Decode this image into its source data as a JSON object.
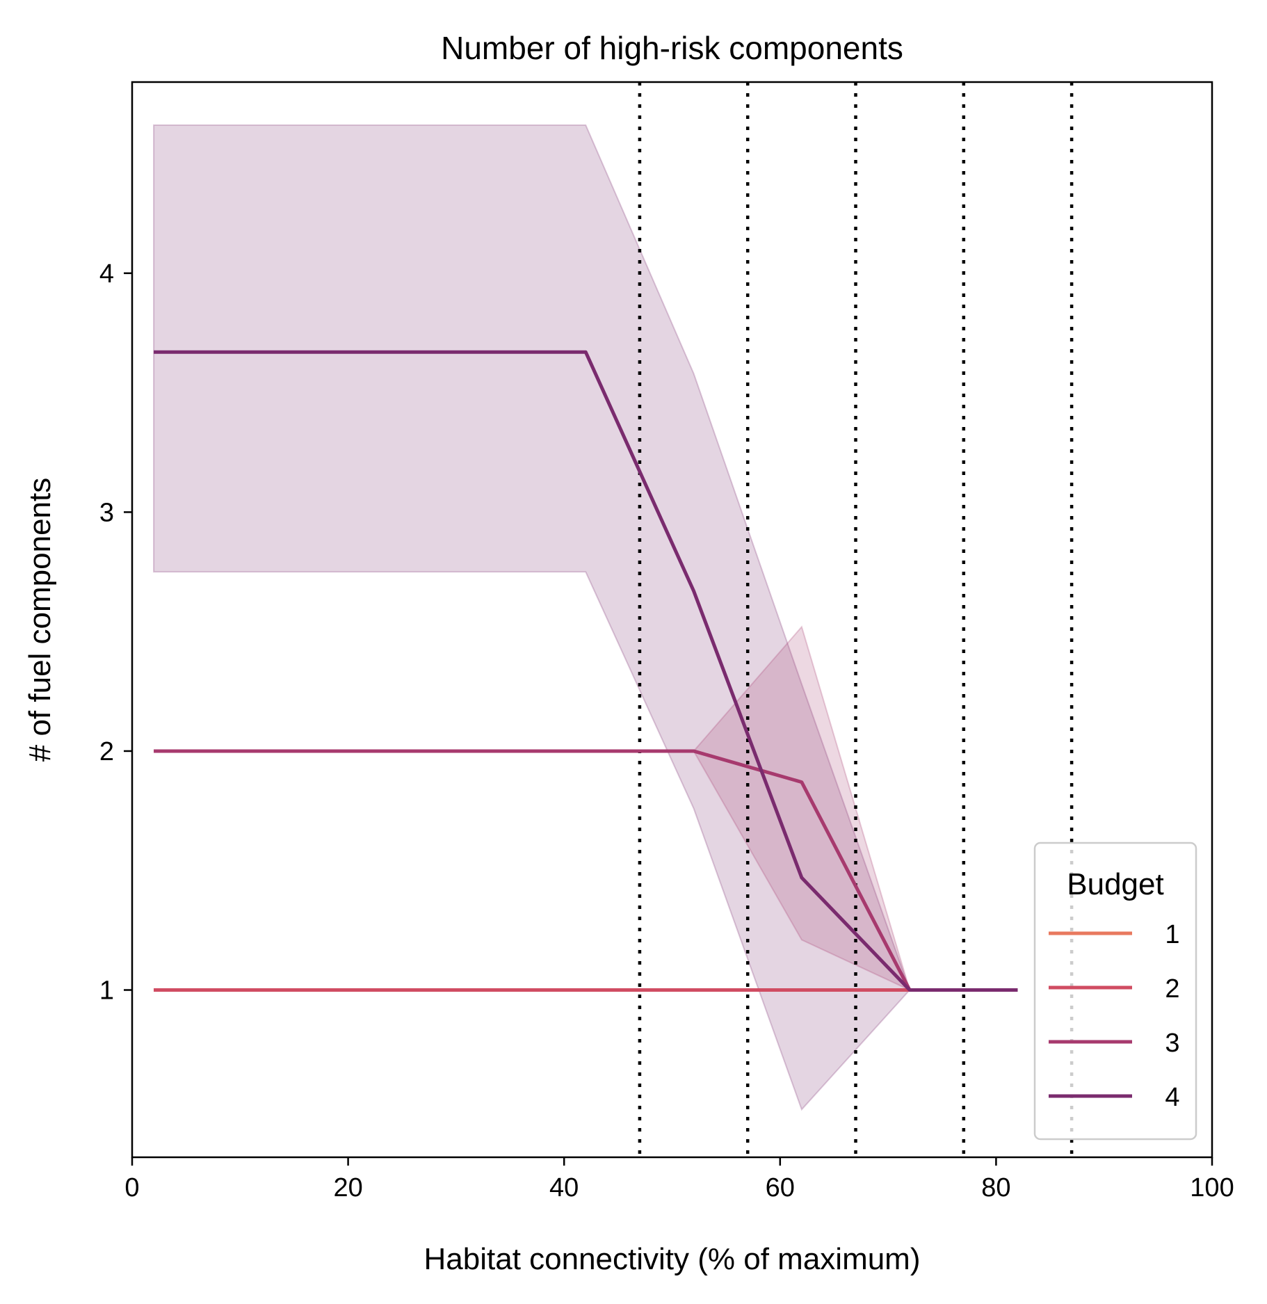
{
  "chart_data": {
    "type": "line",
    "title": "Number of high-risk components",
    "xlabel": "Habitat connectivity (% of maximum)",
    "ylabel": "# of fuel components",
    "xlim": [
      0,
      100
    ],
    "ylim": [
      0.3,
      4.8
    ],
    "xticks": [
      0,
      20,
      40,
      60,
      80,
      100
    ],
    "yticks": [
      1,
      2,
      3,
      4
    ],
    "vlines": [
      47,
      57,
      67,
      77,
      87
    ],
    "grid": false,
    "legend": {
      "title": "Budget",
      "placement": "bottom-right"
    },
    "series": [
      {
        "name": "1",
        "color": "#e8795e",
        "x": [
          2,
          12,
          22,
          32,
          42,
          52,
          62,
          72,
          82
        ],
        "y": [
          1,
          1,
          1,
          1,
          1,
          1,
          1,
          1,
          1
        ]
      },
      {
        "name": "2",
        "color": "#d04c62",
        "x": [
          2,
          12,
          22,
          32,
          42,
          52,
          62,
          72,
          82
        ],
        "y": [
          1,
          1,
          1,
          1,
          1,
          1,
          1,
          1,
          1
        ]
      },
      {
        "name": "3",
        "color": "#a73a6e",
        "x": [
          2,
          12,
          22,
          32,
          42,
          52,
          62,
          72,
          82
        ],
        "y": [
          2,
          2,
          2,
          2,
          2,
          2,
          1.87,
          1,
          1
        ],
        "band_upper": [
          2,
          2,
          2,
          2,
          2,
          2,
          2.52,
          1,
          1
        ],
        "band_lower": [
          2,
          2,
          2,
          2,
          2,
          2,
          1.21,
          1,
          1
        ]
      },
      {
        "name": "4",
        "color": "#7a2b6e",
        "x": [
          2,
          12,
          22,
          32,
          42,
          52,
          62,
          72,
          82
        ],
        "y": [
          3.67,
          3.67,
          3.67,
          3.67,
          3.67,
          2.67,
          1.47,
          1,
          1
        ],
        "band_upper": [
          4.62,
          4.62,
          4.62,
          4.62,
          4.62,
          3.58,
          2.28,
          1,
          1
        ],
        "band_lower": [
          2.75,
          2.75,
          2.75,
          2.75,
          2.75,
          1.76,
          0.5,
          1,
          1
        ]
      }
    ]
  }
}
